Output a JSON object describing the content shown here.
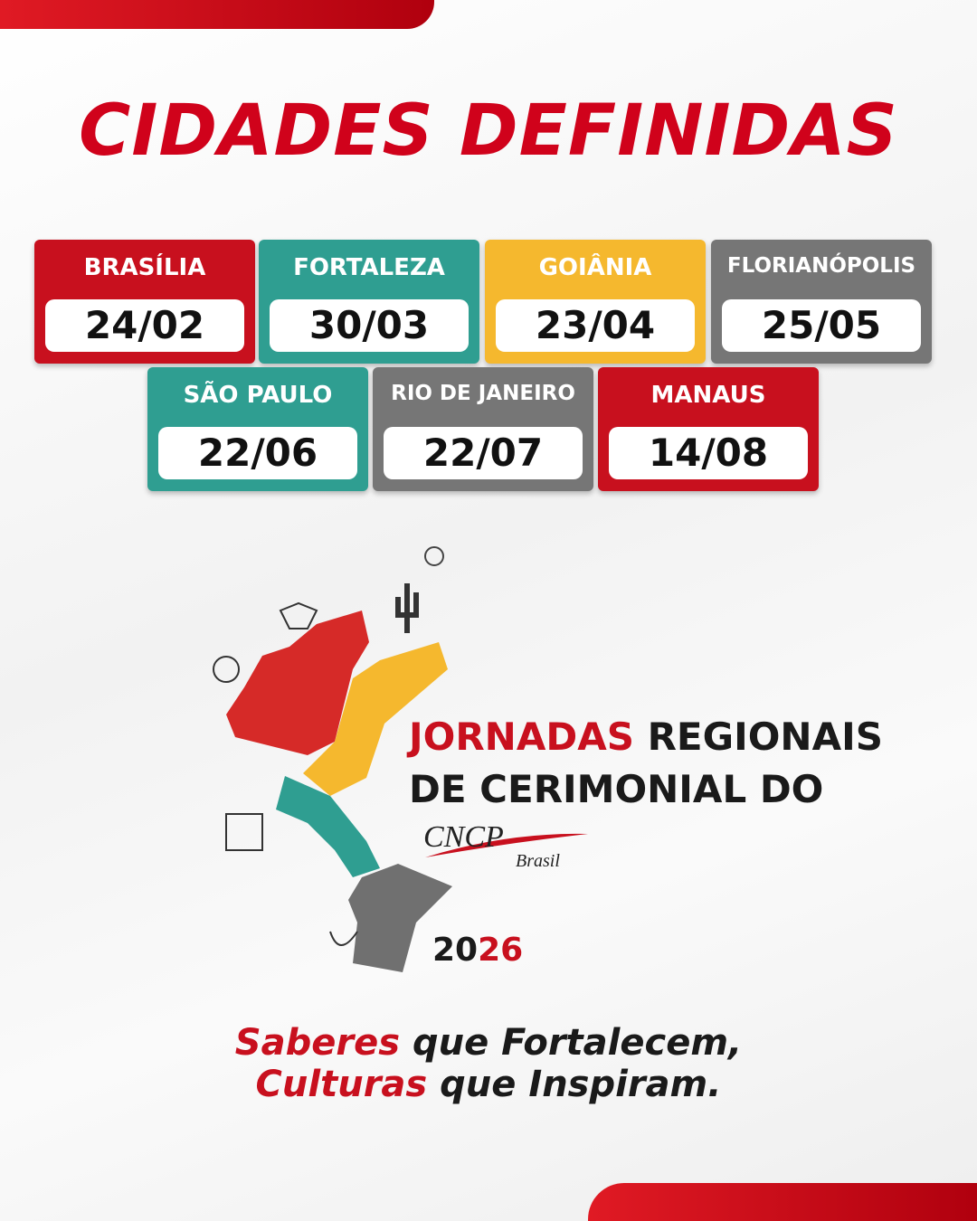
{
  "title": "CIDADES DEFINIDAS",
  "cities": [
    {
      "name": "BRASÍLIA",
      "date": "24/02",
      "color": "#c8101e"
    },
    {
      "name": "FORTALEZA",
      "date": "30/03",
      "color": "#2f9e91"
    },
    {
      "name": "GOIÂNIA",
      "date": "23/04",
      "color": "#f5b82e"
    },
    {
      "name": "FLORIANÓPOLIS",
      "date": "25/05",
      "color": "#767676"
    },
    {
      "name": "SÃO PAULO",
      "date": "22/06",
      "color": "#2f9e91"
    },
    {
      "name": "RIO DE JANEIRO",
      "date": "22/07",
      "color": "#767676"
    },
    {
      "name": "MANAUS",
      "date": "14/08",
      "color": "#c8101e"
    }
  ],
  "logo": {
    "highlight": "JORNADAS",
    "line1": "REGIONAIS",
    "line2": "DE CERIMONIAL DO",
    "brand": "CNCP",
    "brand_sub": "Brasil",
    "year_a": "20",
    "year_b": "26"
  },
  "tagline": {
    "a1": "Saberes",
    "a2": "que Fortalecem,",
    "b1": "Culturas",
    "b2": "que Inspiram."
  }
}
